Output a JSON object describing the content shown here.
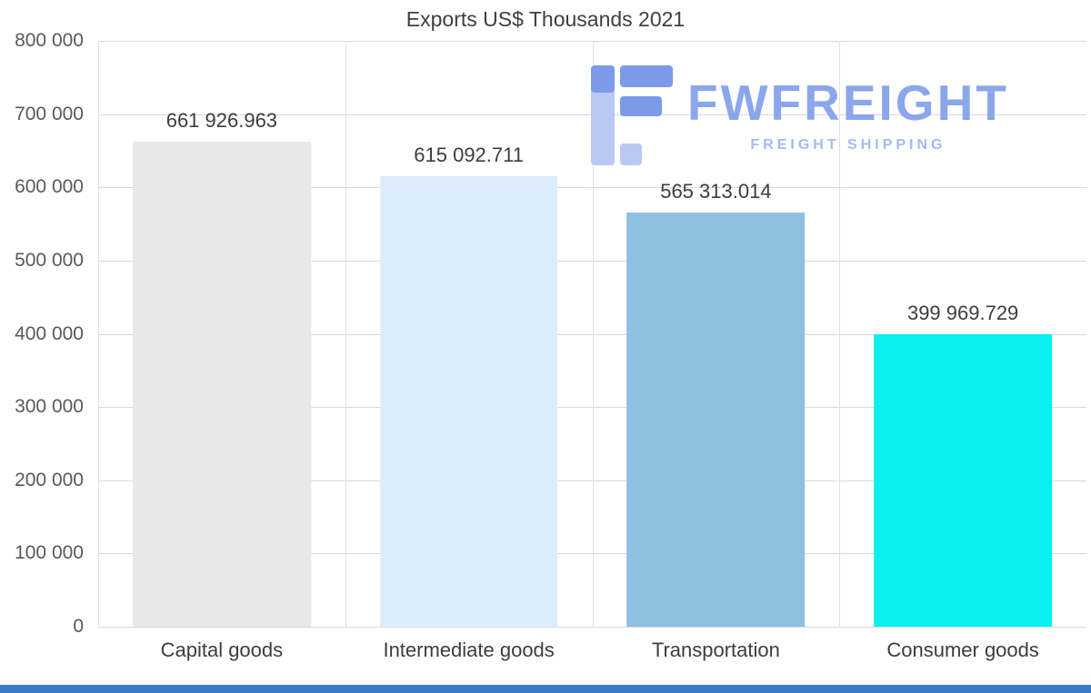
{
  "chart_data": {
    "type": "bar",
    "title": "Exports US$ Thousands 2021",
    "categories": [
      "Capital goods",
      "Intermediate goods",
      "Transportation",
      "Consumer goods"
    ],
    "values": [
      661926.963,
      615092.711,
      565313.014,
      399969.729
    ],
    "value_labels": [
      "661 926.963",
      "615 092.711",
      "565 313.014",
      "399 969.729"
    ],
    "bar_colors": [
      "#e8e8e8",
      "#dcecfa",
      "#8fc0e1",
      "#0aefef"
    ],
    "ylim": [
      0,
      800000
    ],
    "yticks": [
      0,
      100000,
      200000,
      300000,
      400000,
      500000,
      600000,
      700000,
      800000
    ],
    "ytick_labels": [
      "0",
      "100 000",
      "200 000",
      "300 000",
      "400 000",
      "500 000",
      "600 000",
      "700 000",
      "800 000"
    ],
    "xlabel": "",
    "ylabel": "",
    "grid": true,
    "legend_position": "none"
  },
  "watermark": {
    "brand": "FWFREIGHT",
    "tagline": "FREIGHT SHIPPING",
    "brand_color": "#8ba6ec",
    "tagline_color": "#a6baf1",
    "icon_color_dark": "#7d9ae8",
    "icon_color_light": "#b9c9f4"
  },
  "footer_band_color": "#3a7bc8"
}
